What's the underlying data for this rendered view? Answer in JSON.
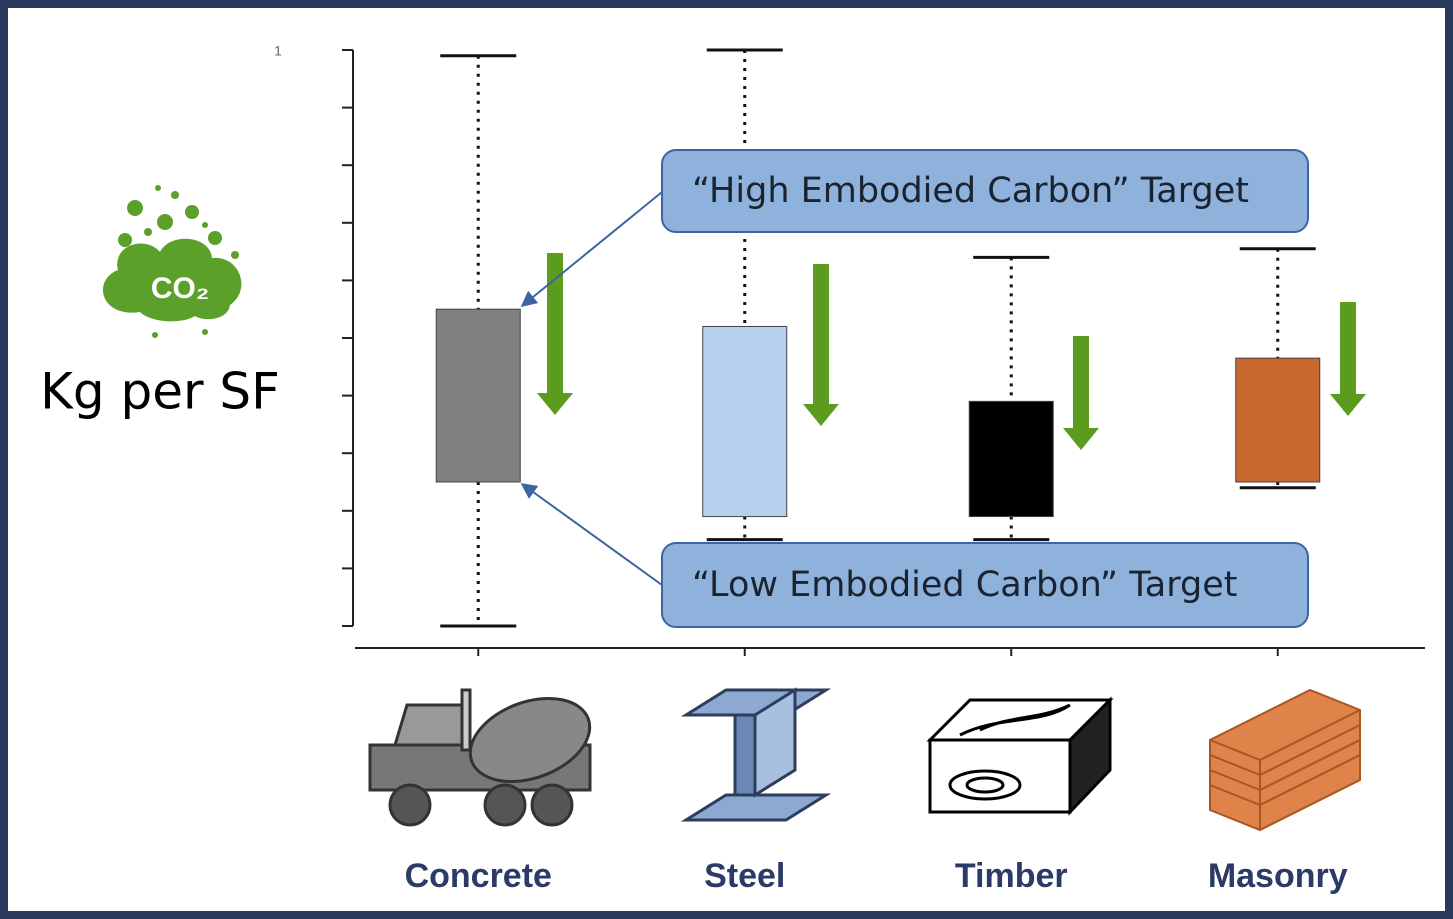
{
  "chart_data": {
    "type": "box",
    "y_label": "Kg per SF",
    "icon_text": "CO₂",
    "stray_label": "1",
    "categories": [
      "Concrete",
      "Steel",
      "Timber",
      "Masonry"
    ],
    "boxes": [
      {
        "min": 0,
        "q1": 2.5,
        "q3": 5.5,
        "max": 9.9,
        "color": "#808080"
      },
      {
        "min": 1.5,
        "q1": 1.9,
        "q3": 5.2,
        "max": 10,
        "color": "#b7cfee"
      },
      {
        "min": 1.5,
        "q1": 1.9,
        "q3": 3.9,
        "max": 6.4,
        "color": "#000000"
      },
      {
        "min": 2.4,
        "q1": 2.5,
        "q3": 4.65,
        "max": 6.55,
        "color": "#c8672e"
      }
    ],
    "ylim": [
      0,
      10
    ],
    "yticks": [
      0,
      1,
      2,
      3,
      4,
      5,
      6,
      7,
      8,
      9,
      10
    ],
    "annotations": [
      "“High Embodied Carbon” Target",
      "“Low Embodied Carbon” Target"
    ]
  }
}
